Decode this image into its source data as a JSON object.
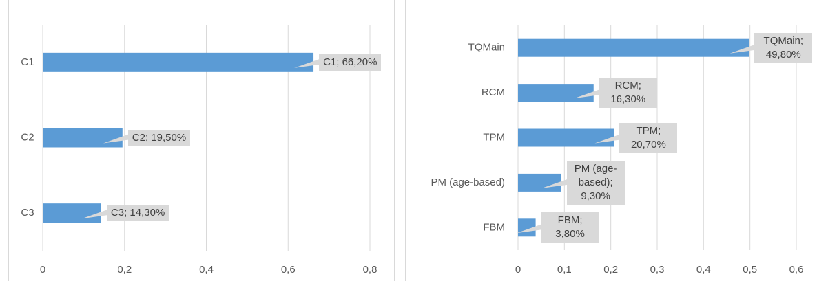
{
  "chart_data": [
    {
      "type": "bar",
      "orientation": "horizontal",
      "categories": [
        "C1",
        "C2",
        "C3"
      ],
      "values": [
        0.662,
        0.195,
        0.143
      ],
      "value_labels": [
        "C1; 66,20%",
        "C2; 19,50%",
        "C3; 14,30%"
      ],
      "color": "#5b9bd5",
      "xlim": [
        0,
        0.8
      ],
      "xticks": [
        0,
        {
          "value": 0.2,
          "label": "0,2"
        },
        {
          "value": 0.4,
          "label": "0,4"
        },
        {
          "value": 0.6,
          "label": "0,6"
        },
        {
          "value": 0.8,
          "label": "0,8"
        }
      ],
      "grid": true
    },
    {
      "type": "bar",
      "orientation": "horizontal",
      "categories": [
        "TQMain",
        "RCM",
        "TPM",
        "PM (age-based)",
        "FBM"
      ],
      "values": [
        0.498,
        0.163,
        0.207,
        0.093,
        0.038
      ],
      "value_labels": [
        "TQMain; 49,80%",
        "RCM; 16,30%",
        "TPM; 20,70%",
        "PM (age-based); 9,30%",
        "FBM; 3,80%"
      ],
      "color": "#5b9bd5",
      "xlim": [
        0,
        0.6
      ],
      "xticks": [
        0,
        {
          "value": 0.1,
          "label": "0,1"
        },
        {
          "value": 0.2,
          "label": "0,2"
        },
        {
          "value": 0.3,
          "label": "0,3"
        },
        {
          "value": 0.4,
          "label": "0,4"
        },
        {
          "value": 0.5,
          "label": "0,5"
        },
        {
          "value": 0.6,
          "label": "0,6"
        }
      ],
      "grid": true
    }
  ]
}
